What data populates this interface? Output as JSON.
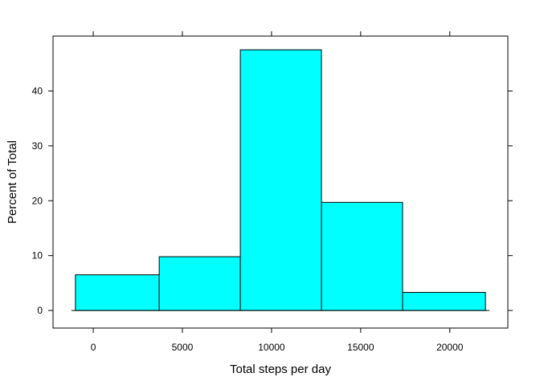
{
  "chart_data": {
    "type": "bar",
    "title": "",
    "xlabel": "Total steps per day",
    "ylabel": "Percent of Total",
    "xlim": [
      -2256,
      23256
    ],
    "ylim": [
      -3.2,
      50
    ],
    "x_ticks": [
      0,
      5000,
      10000,
      15000,
      20000
    ],
    "y_ticks": [
      0,
      10,
      20,
      30,
      40
    ],
    "bins": [
      {
        "start": -1000,
        "end": 3700,
        "value": 6.5
      },
      {
        "start": 3700,
        "end": 8250,
        "value": 9.8
      },
      {
        "start": 8250,
        "end": 12800,
        "value": 47.5
      },
      {
        "start": 12800,
        "end": 17350,
        "value": 19.7
      },
      {
        "start": 17350,
        "end": 22000,
        "value": 3.3
      }
    ],
    "bar_color": "#00FFFF",
    "grid": false,
    "legend": "none"
  }
}
